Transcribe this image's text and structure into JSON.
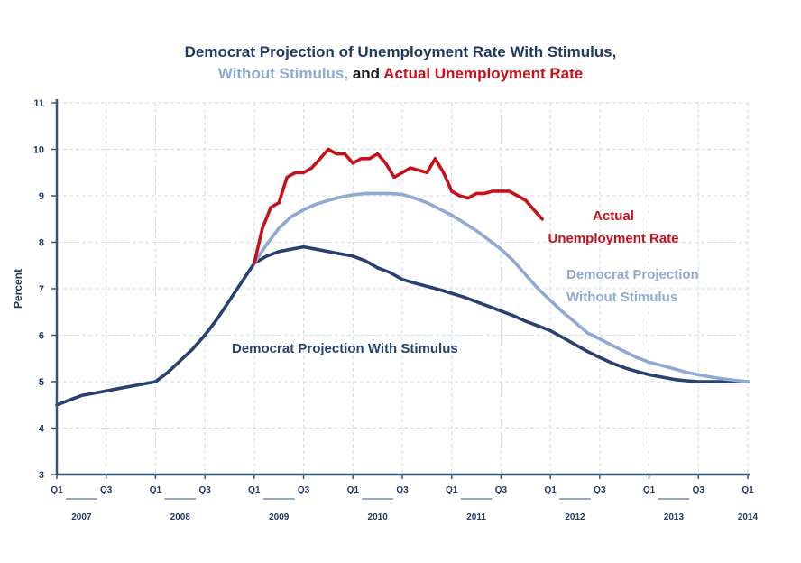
{
  "chart_data": {
    "type": "line",
    "title_parts": [
      "Democrat Projection of Unemployment Rate With Stimulus,",
      "Without Stimulus,",
      "and",
      "Actual Unemployment Rate"
    ],
    "ylabel": "Percent",
    "ylim": [
      3,
      11
    ],
    "yticks": [
      3,
      4,
      5,
      6,
      7,
      8,
      9,
      10,
      11
    ],
    "xlim": [
      0,
      28
    ],
    "grid": true,
    "quarter_ticks": [
      {
        "x": 0,
        "label": "Q1"
      },
      {
        "x": 2,
        "label": "Q3"
      },
      {
        "x": 4,
        "label": "Q1"
      },
      {
        "x": 6,
        "label": "Q3"
      },
      {
        "x": 8,
        "label": "Q1"
      },
      {
        "x": 10,
        "label": "Q3"
      },
      {
        "x": 12,
        "label": "Q1"
      },
      {
        "x": 14,
        "label": "Q3"
      },
      {
        "x": 16,
        "label": "Q1"
      },
      {
        "x": 18,
        "label": "Q3"
      },
      {
        "x": 20,
        "label": "Q1"
      },
      {
        "x": 22,
        "label": "Q3"
      },
      {
        "x": 24,
        "label": "Q1"
      },
      {
        "x": 26,
        "label": "Q3"
      },
      {
        "x": 28,
        "label": "Q1"
      }
    ],
    "years": [
      {
        "label": "2007",
        "from": 0,
        "to": 2
      },
      {
        "label": "2008",
        "from": 4,
        "to": 6
      },
      {
        "label": "2009",
        "from": 8,
        "to": 10
      },
      {
        "label": "2010",
        "from": 12,
        "to": 14
      },
      {
        "label": "2011",
        "from": 16,
        "to": 18
      },
      {
        "label": "2012",
        "from": 20,
        "to": 22
      },
      {
        "label": "2013",
        "from": 24,
        "to": 26
      },
      {
        "label": "2014",
        "from": 28,
        "to": 28
      }
    ],
    "series": [
      {
        "name": "Democrat Projection With Stimulus",
        "color": "#27426e",
        "x": [
          0,
          0.5,
          1,
          1.5,
          2,
          2.5,
          3,
          3.5,
          4,
          4.5,
          5,
          5.5,
          6,
          6.5,
          7,
          7.5,
          8,
          8.5,
          9,
          9.5,
          10,
          10.5,
          11,
          11.5,
          12,
          12.5,
          13,
          13.5,
          14,
          14.5,
          15,
          15.5,
          16,
          16.5,
          17,
          17.5,
          18,
          18.5,
          19,
          19.5,
          20,
          20.5,
          21,
          21.5,
          22,
          22.5,
          23,
          23.5,
          24,
          24.5,
          25,
          25.5,
          26,
          26.5,
          27,
          27.5,
          28
        ],
        "values": [
          4.5,
          4.6,
          4.7,
          4.75,
          4.8,
          4.85,
          4.9,
          4.95,
          5.0,
          5.2,
          5.45,
          5.7,
          6.0,
          6.35,
          6.75,
          7.15,
          7.55,
          7.7,
          7.8,
          7.85,
          7.9,
          7.85,
          7.8,
          7.75,
          7.7,
          7.6,
          7.45,
          7.35,
          7.2,
          7.12,
          7.05,
          6.98,
          6.9,
          6.82,
          6.72,
          6.62,
          6.52,
          6.42,
          6.3,
          6.2,
          6.1,
          5.95,
          5.8,
          5.65,
          5.52,
          5.4,
          5.3,
          5.22,
          5.15,
          5.1,
          5.05,
          5.02,
          5.0,
          5.0,
          5.0,
          5.0,
          5.0
        ]
      },
      {
        "name": "Democrat Projection Without Stimulus",
        "color": "#90a9d3",
        "x": [
          8,
          8.5,
          9,
          9.5,
          10,
          10.5,
          11,
          11.5,
          12,
          12.5,
          13,
          13.5,
          14,
          14.5,
          15,
          15.5,
          16,
          16.5,
          17,
          17.5,
          18,
          18.5,
          19,
          19.5,
          20,
          20.5,
          21,
          21.5,
          22,
          22.5,
          23,
          23.5,
          24,
          24.5,
          25,
          25.5,
          26,
          26.5,
          27,
          27.5,
          28
        ],
        "values": [
          7.55,
          7.95,
          8.3,
          8.55,
          8.7,
          8.82,
          8.9,
          8.97,
          9.02,
          9.05,
          9.05,
          9.05,
          9.03,
          8.95,
          8.85,
          8.72,
          8.58,
          8.42,
          8.25,
          8.05,
          7.85,
          7.6,
          7.3,
          7.0,
          6.75,
          6.5,
          6.28,
          6.05,
          5.92,
          5.78,
          5.65,
          5.52,
          5.42,
          5.35,
          5.28,
          5.2,
          5.15,
          5.1,
          5.06,
          5.03,
          5.0
        ]
      },
      {
        "name": "Actual Unemployment Rate",
        "color": "#c8101a",
        "x": [
          8,
          8.33,
          8.67,
          9,
          9.33,
          9.67,
          10,
          10.33,
          10.67,
          11,
          11.33,
          11.67,
          12,
          12.33,
          12.67,
          13,
          13.33,
          13.67,
          14,
          14.33,
          14.67,
          15,
          15.33,
          15.67,
          16,
          16.33,
          16.67,
          17,
          17.33,
          17.67,
          18,
          18.33,
          18.67,
          19,
          19.33,
          19.67
        ],
        "values": [
          7.55,
          8.3,
          8.75,
          8.85,
          9.4,
          9.5,
          9.5,
          9.6,
          9.8,
          10.0,
          9.9,
          9.9,
          9.7,
          9.8,
          9.8,
          9.9,
          9.7,
          9.4,
          9.5,
          9.6,
          9.55,
          9.5,
          9.8,
          9.5,
          9.1,
          9.0,
          8.95,
          9.05,
          9.05,
          9.1,
          9.1,
          9.1,
          9.0,
          8.9,
          8.7,
          8.5
        ]
      }
    ],
    "annotations": [
      {
        "text": "Actual",
        "series": 2
      },
      {
        "text": "Unemployment Rate",
        "series": 2
      },
      {
        "text": "Democrat Projection",
        "series": 1
      },
      {
        "text": "Without Stimulus",
        "series": 1
      },
      {
        "text": "Democrat Projection With Stimulus",
        "series": 0
      }
    ]
  }
}
